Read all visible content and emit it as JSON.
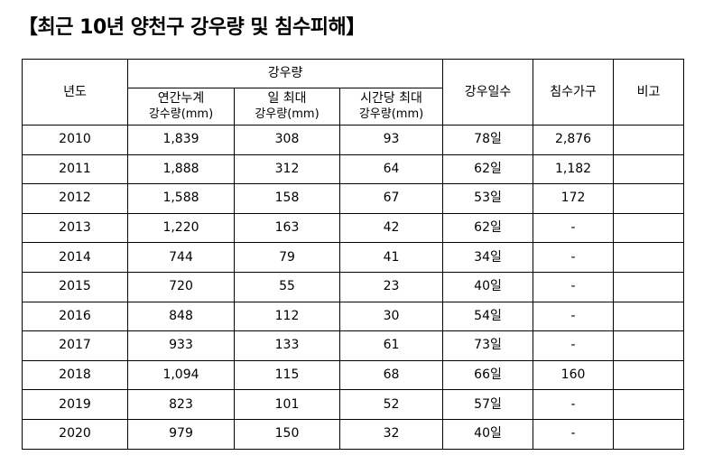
{
  "title": "【최근 10년 양천구 강우량 및 침수피해】",
  "table": {
    "header": {
      "year": "년도",
      "rainfall_group": "강우량",
      "annual_total": [
        "연간누계",
        "강수량(mm)"
      ],
      "daily_max": [
        "일 최대",
        "강우량(mm)"
      ],
      "hourly_max": [
        "시간당 최대",
        "강우량(mm)"
      ],
      "rain_days": "강우일수",
      "flooded_households": "침수가구",
      "remarks": "비고"
    },
    "rows": [
      {
        "year": "2010",
        "annual": "1,839",
        "daily_max": "308",
        "hourly_max": "93",
        "rain_days": "78일",
        "flooded": "2,876",
        "remarks": ""
      },
      {
        "year": "2011",
        "annual": "1,888",
        "daily_max": "312",
        "hourly_max": "64",
        "rain_days": "62일",
        "flooded": "1,182",
        "remarks": ""
      },
      {
        "year": "2012",
        "annual": "1,588",
        "daily_max": "158",
        "hourly_max": "67",
        "rain_days": "53일",
        "flooded": "172",
        "remarks": ""
      },
      {
        "year": "2013",
        "annual": "1,220",
        "daily_max": "163",
        "hourly_max": "42",
        "rain_days": "62일",
        "flooded": "-",
        "remarks": ""
      },
      {
        "year": "2014",
        "annual": "744",
        "daily_max": "79",
        "hourly_max": "41",
        "rain_days": "34일",
        "flooded": "-",
        "remarks": ""
      },
      {
        "year": "2015",
        "annual": "720",
        "daily_max": "55",
        "hourly_max": "23",
        "rain_days": "40일",
        "flooded": "-",
        "remarks": ""
      },
      {
        "year": "2016",
        "annual": "848",
        "daily_max": "112",
        "hourly_max": "30",
        "rain_days": "54일",
        "flooded": "-",
        "remarks": ""
      },
      {
        "year": "2017",
        "annual": "933",
        "daily_max": "133",
        "hourly_max": "61",
        "rain_days": "73일",
        "flooded": "-",
        "remarks": ""
      },
      {
        "year": "2018",
        "annual": "1,094",
        "daily_max": "115",
        "hourly_max": "68",
        "rain_days": "66일",
        "flooded": "160",
        "remarks": ""
      },
      {
        "year": "2019",
        "annual": "823",
        "daily_max": "101",
        "hourly_max": "52",
        "rain_days": "57일",
        "flooded": "-",
        "remarks": ""
      },
      {
        "year": "2020",
        "annual": "979",
        "daily_max": "150",
        "hourly_max": "32",
        "rain_days": "40일",
        "flooded": "-",
        "remarks": ""
      }
    ]
  }
}
